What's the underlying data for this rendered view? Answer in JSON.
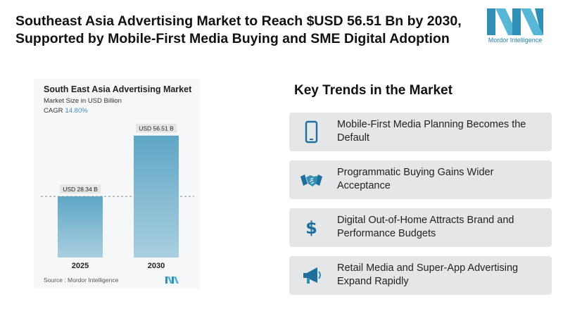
{
  "headline": {
    "line1": "Southeast Asia Advertising Market to Reach $USD 56.51 Bn by 2030,",
    "line2": "Supported by Mobile-First Media Buying and SME Digital Adoption"
  },
  "brand": {
    "name": "Mordor Intelligence",
    "logo_icon": "mordor-logo-icon",
    "accent_color": "#4a9fc1"
  },
  "chart_data": {
    "type": "bar",
    "title": "South East Asia Advertising Market",
    "subtitle": "Market Size in USD Billion",
    "cagr_label": "CAGR",
    "cagr_value": "14.80%",
    "categories": [
      "2025",
      "2030"
    ],
    "values": [
      28.34,
      56.51
    ],
    "data_labels": [
      "USD 28.34 B",
      "USD 56.51 B"
    ],
    "ylim": [
      0,
      60
    ],
    "xlabel": "",
    "ylabel": "",
    "grid": false,
    "source": "Source :  Mordor Intelligence",
    "colors": {
      "bar_top": "#5fa6c6",
      "bar_bottom": "#a9cfdf",
      "reference_line": "#888888"
    }
  },
  "trends": {
    "title": "Key Trends in the Market",
    "items": [
      {
        "icon": "mobile-phone-icon",
        "text": "Mobile-First Media Planning Becomes the Default"
      },
      {
        "icon": "handshake-icon",
        "text": "Programmatic Buying Gains Wider Acceptance"
      },
      {
        "icon": "dollar-icon",
        "text": "Digital Out-of-Home Attracts Brand and Performance Budgets"
      },
      {
        "icon": "megaphone-icon",
        "text": "Retail Media and Super-App Advertising Expand Rapidly"
      }
    ]
  }
}
